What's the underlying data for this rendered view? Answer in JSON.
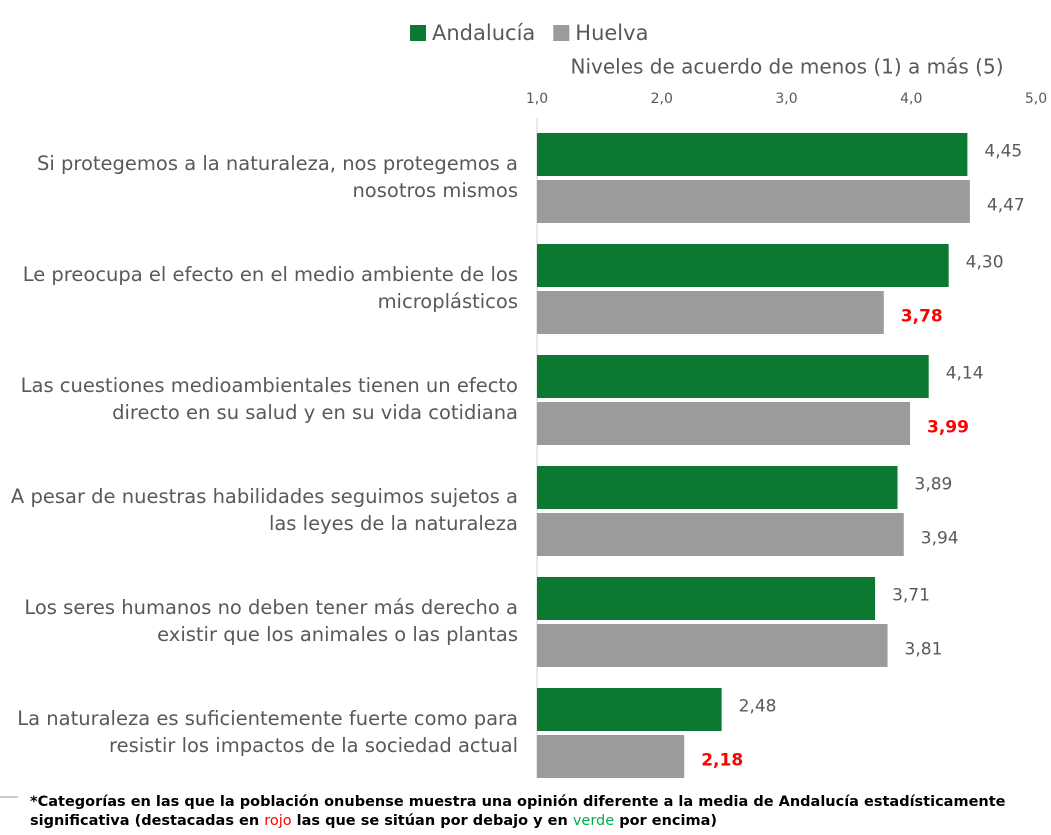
{
  "chart_data": {
    "type": "hbar",
    "axis_title": "Niveles de acuerdo de menos (1) a más (5)",
    "categories": [
      "Si protegemos a la naturaleza, nos protegemos a nosotros mismos",
      "Le preocupa el efecto en el medio ambiente de los microplásticos",
      "Las cuestiones medioambientales tienen un efecto directo en su salud y en su vida cotidiana",
      "A pesar de nuestras habilidades seguimos sujetos a las leyes de la naturaleza",
      "Los seres humanos no deben tener más derecho a existir que los animales o las plantas",
      "La naturaleza es suficientemente fuerte como para resistir los impactos de la sociedad actual"
    ],
    "series": [
      {
        "name": "Andalucía",
        "color": "#0b7a30",
        "values": [
          4.45,
          4.3,
          4.14,
          3.89,
          3.71,
          2.48
        ],
        "value_labels": [
          "4,45",
          "4,30",
          "4,14",
          "3,89",
          "3,71",
          "2,48"
        ],
        "label_colors": [
          "#595959",
          "#595959",
          "#595959",
          "#595959",
          "#595959",
          "#595959"
        ]
      },
      {
        "name": "Huelva",
        "color": "#9b9b9b",
        "values": [
          4.47,
          3.78,
          3.99,
          3.94,
          3.81,
          2.18
        ],
        "value_labels": [
          "4,47",
          "3,78",
          "3,99",
          "3,94",
          "3,81",
          "2,18"
        ],
        "label_colors": [
          "#595959",
          "#ff0000",
          "#ff0000",
          "#595959",
          "#595959",
          "#ff0000"
        ]
      }
    ],
    "xlim": [
      1,
      5
    ],
    "xticks": [
      {
        "value": 1,
        "label": "1,0"
      },
      {
        "value": 2,
        "label": "2,0"
      },
      {
        "value": 3,
        "label": "3,0"
      },
      {
        "value": 4,
        "label": "4,0"
      },
      {
        "value": 5,
        "label": "5,0"
      }
    ],
    "legend": "top",
    "footnote": {
      "parts": [
        "*Categorías en las que la población onubense muestra una opinión diferente a la media de Andalucía estadísticamente significativa (destacadas en ",
        "rojo",
        " las que se sitúan por debajo y en ",
        "verde",
        " por encima)"
      ],
      "colors": [
        "#000000",
        "#ff0000",
        "#000000",
        "#00b050",
        "#000000"
      ]
    }
  }
}
